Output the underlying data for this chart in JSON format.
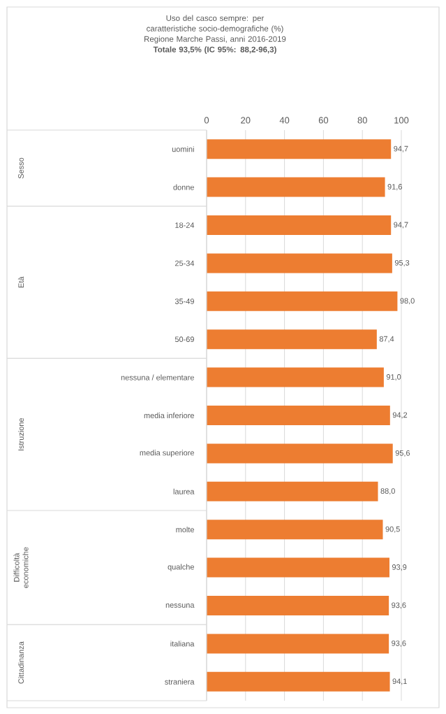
{
  "chart_data": {
    "type": "bar",
    "orientation": "horizontal",
    "title": "Uso del casco sempre: per caratteristiche socio-demografiche (%)",
    "subtitle": "Regione Marche Passi, anni 2016-2019",
    "annotations": [
      "Totale 93,5% (IC 95%: 88,2-96,3)",
      "Sesso",
      "Età",
      "Istruzione",
      "Difficoltà economiche",
      "Cittadinanza"
    ],
    "categories": [
      "uomini",
      "donne",
      "18-24",
      "25-34",
      "35-49",
      "50-69",
      "nessuna / elementare",
      "media inferiore",
      "media superiore",
      "laurea",
      "molte",
      "qualche",
      "nessuna",
      "italiana",
      "straniera"
    ],
    "values": [
      94.7,
      91.6,
      94.7,
      95.3,
      98.0,
      87.4,
      91.0,
      94.2,
      95.6,
      88.0,
      90.5,
      93.9,
      93.6,
      93.6,
      94.1
    ],
    "value_labels": [
      "94,7",
      "91,6",
      "94,7",
      "95,3",
      "98,0",
      "87,4",
      "91,0",
      "94,2",
      "95,6",
      "88,0",
      "90,5",
      "93,9",
      "93,6",
      "93,6",
      "94,1"
    ],
    "color": "#ed7d31",
    "xlim": [
      0,
      100
    ],
    "xticks": [
      0,
      20,
      40,
      60,
      80,
      100
    ],
    "grid": "x"
  }
}
